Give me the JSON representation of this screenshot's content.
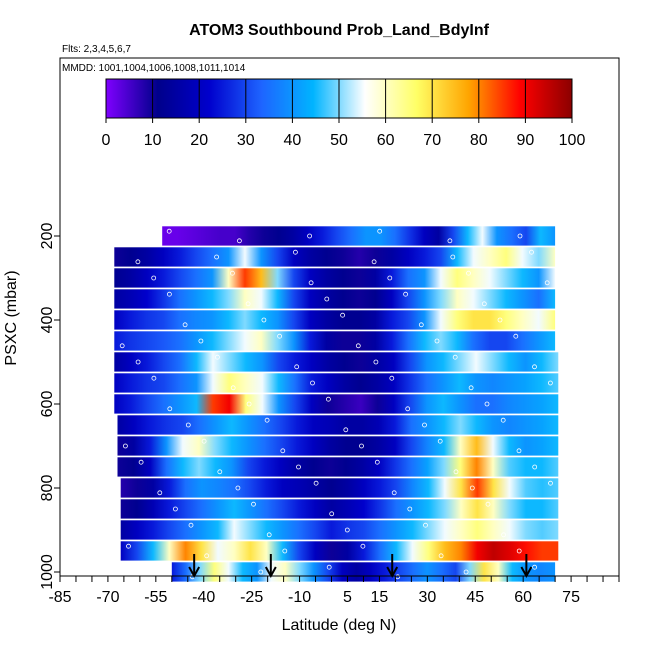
{
  "chart_data": {
    "type": "heatmap",
    "title": "ATOM3 Southbound Prob_Land_BdyInf",
    "subtitle_flights": "Flts: 2,3,4,5,6,7",
    "subtitle_dates": "MMDD: 1001,1004,1006,1008,1011,1014",
    "xlabel": "Latitude (deg N)",
    "ylabel": "PSXC (mbar)",
    "xlim": [
      -85,
      90
    ],
    "ylim": [
      1000,
      0
    ],
    "x_ticks": [
      -85,
      -70,
      -55,
      -40,
      -25,
      -10,
      5,
      15,
      30,
      45,
      60,
      75
    ],
    "x_tick_labels": [
      "-85",
      "-70",
      "-55",
      "-40",
      "-25",
      "-10",
      "5",
      "15",
      "30",
      "45",
      "60",
      "75"
    ],
    "y_ticks": [
      200,
      400,
      600,
      800,
      1000
    ],
    "y_tick_labels": [
      "200",
      "400",
      "600",
      "800",
      "1000"
    ],
    "colorbar": {
      "range": [
        0,
        100
      ],
      "ticks": [
        0,
        10,
        20,
        30,
        40,
        50,
        60,
        70,
        80,
        90,
        100
      ],
      "tick_labels": [
        "0",
        "10",
        "20",
        "30",
        "40",
        "50",
        "60",
        "70",
        "80",
        "90",
        "100"
      ],
      "colors": [
        "#7f00ff",
        "#00008b",
        "#0000cd",
        "#1e64ff",
        "#00b4ff",
        "#ffffff",
        "#ffff66",
        "#ffa500",
        "#ff0000",
        "#8b0000"
      ]
    },
    "rows": [
      {
        "p": 200,
        "lat_min": -53,
        "lat_max": 70,
        "values": [
          2,
          2,
          3,
          4,
          5,
          5,
          8,
          10,
          12,
          15,
          20,
          25,
          30,
          35,
          40,
          40,
          35,
          28,
          20,
          15,
          30,
          45,
          55,
          40,
          35,
          30,
          45,
          40
        ]
      },
      {
        "p": 250,
        "lat_min": -68,
        "lat_max": 70,
        "values": [
          10,
          12,
          15,
          20,
          25,
          30,
          35,
          40,
          55,
          40,
          30,
          20,
          15,
          12,
          10,
          8,
          10,
          15,
          20,
          25,
          30,
          45,
          55,
          60,
          65,
          55,
          50,
          60
        ]
      },
      {
        "p": 300,
        "lat_min": -68,
        "lat_max": 70,
        "values": [
          12,
          15,
          20,
          25,
          30,
          35,
          40,
          60,
          85,
          75,
          50,
          30,
          20,
          15,
          12,
          10,
          15,
          25,
          35,
          40,
          55,
          65,
          60,
          55,
          50,
          45,
          40,
          55
        ]
      },
      {
        "p": 350,
        "lat_min": -68,
        "lat_max": 70,
        "values": [
          15,
          18,
          22,
          28,
          35,
          40,
          45,
          50,
          60,
          55,
          45,
          30,
          20,
          15,
          12,
          10,
          12,
          20,
          30,
          40,
          50,
          60,
          55,
          50,
          45,
          40,
          35,
          45
        ]
      },
      {
        "p": 400,
        "lat_min": -68,
        "lat_max": 70,
        "values": [
          20,
          25,
          28,
          30,
          35,
          38,
          40,
          45,
          50,
          45,
          40,
          30,
          20,
          15,
          12,
          12,
          15,
          25,
          30,
          40,
          55,
          65,
          70,
          70,
          65,
          60,
          55,
          65
        ]
      },
      {
        "p": 450,
        "lat_min": -68,
        "lat_max": 70,
        "values": [
          25,
          28,
          30,
          32,
          35,
          40,
          45,
          50,
          55,
          60,
          50,
          40,
          25,
          15,
          10,
          10,
          15,
          25,
          35,
          45,
          50,
          45,
          35,
          30,
          30,
          35,
          40,
          45
        ]
      },
      {
        "p": 500,
        "lat_min": -68,
        "lat_max": 71,
        "values": [
          15,
          20,
          25,
          30,
          35,
          45,
          55,
          50,
          45,
          40,
          30,
          25,
          20,
          15,
          12,
          10,
          15,
          20,
          30,
          40,
          45,
          50,
          55,
          50,
          45,
          40,
          45,
          50
        ]
      },
      {
        "p": 550,
        "lat_min": -68,
        "lat_max": 71,
        "values": [
          20,
          25,
          28,
          30,
          35,
          40,
          55,
          65,
          60,
          55,
          45,
          35,
          25,
          20,
          15,
          12,
          15,
          20,
          28,
          35,
          40,
          45,
          40,
          38,
          40,
          42,
          45,
          48
        ]
      },
      {
        "p": 600,
        "lat_min": -68,
        "lat_max": 71,
        "values": [
          20,
          25,
          30,
          35,
          40,
          45,
          85,
          90,
          65,
          55,
          40,
          30,
          20,
          10,
          8,
          6,
          10,
          20,
          30,
          40,
          45,
          40,
          35,
          35,
          38,
          40,
          42,
          45
        ]
      },
      {
        "p": 650,
        "lat_min": -67,
        "lat_max": 71,
        "values": [
          15,
          20,
          25,
          28,
          30,
          35,
          40,
          45,
          40,
          35,
          30,
          25,
          20,
          18,
          15,
          15,
          18,
          25,
          35,
          40,
          45,
          50,
          45,
          40,
          38,
          40,
          42,
          45
        ]
      },
      {
        "p": 700,
        "lat_min": -67,
        "lat_max": 71,
        "values": [
          10,
          15,
          25,
          40,
          55,
          60,
          50,
          45,
          40,
          35,
          30,
          25,
          20,
          15,
          12,
          12,
          15,
          20,
          30,
          38,
          45,
          60,
          75,
          55,
          45,
          40,
          42,
          45
        ]
      },
      {
        "p": 750,
        "lat_min": -67,
        "lat_max": 71,
        "values": [
          10,
          12,
          20,
          35,
          45,
          50,
          45,
          40,
          30,
          25,
          20,
          15,
          12,
          10,
          12,
          15,
          20,
          28,
          35,
          42,
          50,
          65,
          80,
          60,
          48,
          45,
          45,
          48
        ]
      },
      {
        "p": 800,
        "lat_min": -66,
        "lat_max": 71,
        "values": [
          8,
          10,
          15,
          25,
          35,
          40,
          38,
          35,
          30,
          25,
          20,
          18,
          15,
          12,
          15,
          20,
          25,
          30,
          38,
          45,
          55,
          70,
          85,
          70,
          55,
          48,
          46,
          48
        ]
      },
      {
        "p": 850,
        "lat_min": -66,
        "lat_max": 71,
        "values": [
          10,
          12,
          18,
          25,
          30,
          35,
          40,
          45,
          40,
          35,
          30,
          25,
          20,
          15,
          18,
          22,
          28,
          35,
          40,
          45,
          50,
          60,
          70,
          60,
          50,
          45,
          45,
          48
        ]
      },
      {
        "p": 900,
        "lat_min": -66,
        "lat_max": 71,
        "values": [
          15,
          20,
          25,
          30,
          35,
          40,
          45,
          55,
          50,
          45,
          40,
          35,
          30,
          25,
          28,
          30,
          35,
          40,
          45,
          50,
          55,
          60,
          65,
          60,
          55,
          50,
          48,
          50
        ]
      },
      {
        "p": 950,
        "lat_min": -66,
        "lat_max": 71,
        "values": [
          20,
          30,
          45,
          60,
          80,
          70,
          55,
          60,
          70,
          60,
          45,
          30,
          20,
          10,
          15,
          25,
          35,
          45,
          55,
          65,
          75,
          80,
          90,
          95,
          92,
          88,
          85,
          85
        ]
      },
      {
        "p": 1000,
        "lat_min": -50,
        "lat_max": 70,
        "values": [
          25,
          35,
          50,
          65,
          55,
          45,
          40,
          55,
          60,
          50,
          40,
          30,
          20,
          15,
          20,
          25,
          30,
          35,
          40,
          35,
          30,
          50,
          70,
          60,
          45,
          40,
          38,
          40
        ]
      }
    ],
    "flight_markers_lat": [
      -43,
      -19,
      19,
      61
    ],
    "grid": false,
    "legend": "colorbar-top"
  }
}
